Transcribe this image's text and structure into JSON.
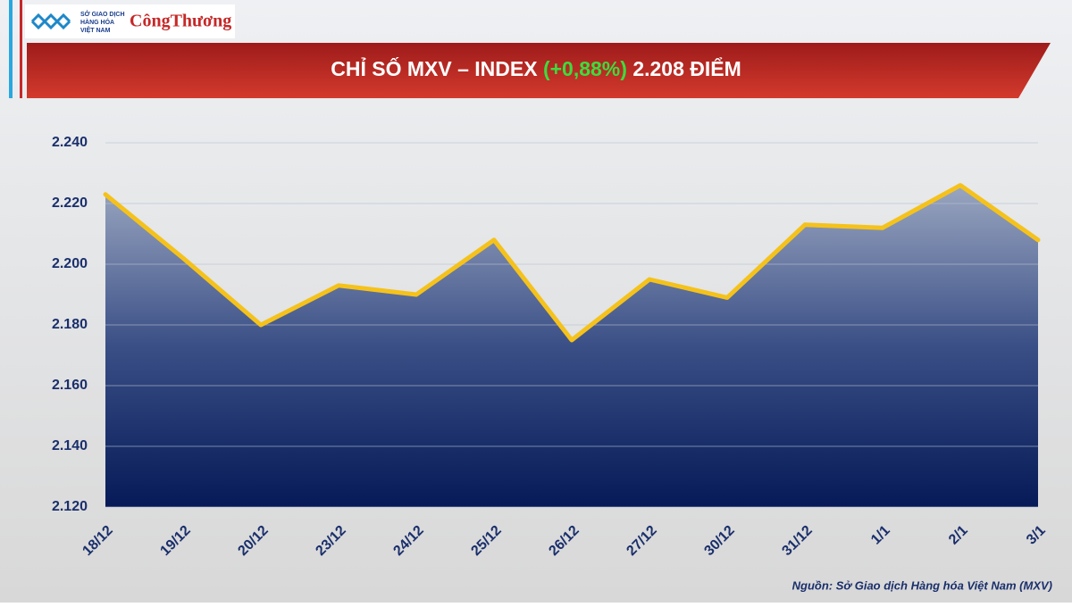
{
  "logo": {
    "org": [
      "SỞ GIAO DỊCH",
      "HÀNG HÓA",
      "VIỆT NAM"
    ],
    "brand": "CôngThương"
  },
  "chart_data": {
    "type": "area",
    "title": "CHỈ SỐ MXV – INDEX",
    "change": "(+0,88%)",
    "title_value": "2.208 ĐIỂM",
    "categories": [
      "18/12",
      "19/12",
      "20/12",
      "23/12",
      "24/12",
      "25/12",
      "26/12",
      "27/12",
      "30/12",
      "31/12",
      "1/1",
      "2/1",
      "3/1"
    ],
    "values": [
      2223,
      2202,
      2180,
      2193,
      2190,
      2208,
      2175,
      2195,
      2189,
      2213,
      2212,
      2226,
      2208
    ],
    "line_color": "#f5c21b",
    "ylim": [
      2120,
      2240
    ],
    "yticks": [
      {
        "value": 2120,
        "label": "2.120"
      },
      {
        "value": 2140,
        "label": "2.140"
      },
      {
        "value": 2160,
        "label": "2.160"
      },
      {
        "value": 2180,
        "label": "2.180"
      },
      {
        "value": 2200,
        "label": "2.200"
      },
      {
        "value": 2220,
        "label": "2.220"
      },
      {
        "value": 2240,
        "label": "2.240"
      }
    ],
    "grid": true,
    "source": "Nguồn: Sở Giao dịch Hàng hóa Việt Nam (MXV)"
  }
}
